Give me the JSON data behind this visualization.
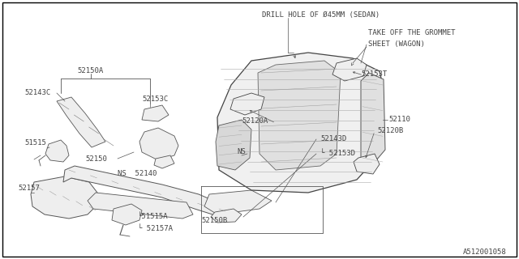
{
  "bg_color": "#ffffff",
  "border_color": "#000000",
  "line_color": "#000000",
  "text_color": "#000000",
  "gray_color": "#888888",
  "title_text": "DRILL HOLE OF Ø45MM (SEDAN)",
  "annotation1": "TAKE OFF THE GROMMET",
  "annotation2": "SHEET (WAGON)",
  "footer": "A512001058",
  "figsize": [
    6.4,
    3.2
  ],
  "dpi": 100
}
